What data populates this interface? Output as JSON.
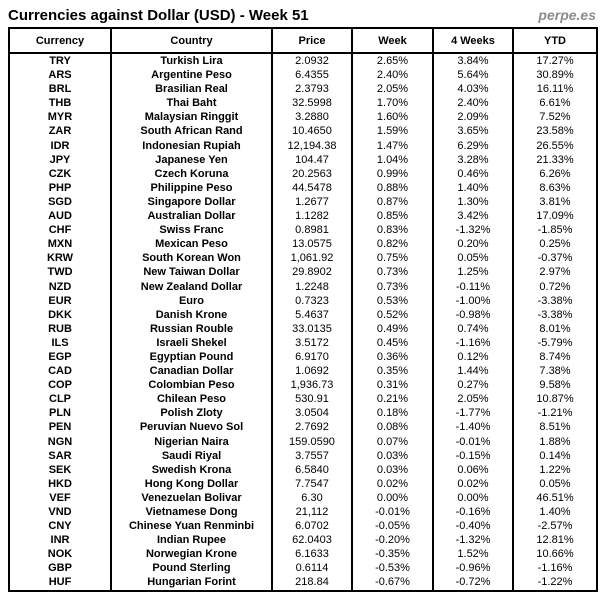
{
  "header": {
    "title": "Currencies against Dollar (USD) - Week 51",
    "watermark": "perpe.es"
  },
  "colors": {
    "positive": "#008000",
    "negative": "#ff0000",
    "border": "#000000",
    "price_text": "#000000",
    "watermark": "#8c8c8c"
  },
  "chart_data": {
    "type": "table",
    "title": "Currencies against Dollar (USD) - Week 51",
    "columns": [
      "Currency",
      "Country",
      "Price",
      "Week",
      "4 Weeks",
      "YTD"
    ],
    "rows": [
      {
        "code": "TRY",
        "country": "Turkish Lira",
        "price": "2.0932",
        "week": "2.65%",
        "weeks4": "3.84%",
        "ytd": "17.27%"
      },
      {
        "code": "ARS",
        "country": "Argentine Peso",
        "price": "6.4355",
        "week": "2.40%",
        "weeks4": "5.64%",
        "ytd": "30.89%"
      },
      {
        "code": "BRL",
        "country": "Brasilian Real",
        "price": "2.3793",
        "week": "2.05%",
        "weeks4": "4.03%",
        "ytd": "16.11%"
      },
      {
        "code": "THB",
        "country": "Thai Baht",
        "price": "32.5998",
        "week": "1.70%",
        "weeks4": "2.40%",
        "ytd": "6.61%"
      },
      {
        "code": "MYR",
        "country": "Malaysian Ringgit",
        "price": "3.2880",
        "week": "1.60%",
        "weeks4": "2.09%",
        "ytd": "7.52%"
      },
      {
        "code": "ZAR",
        "country": "South African Rand",
        "price": "10.4650",
        "week": "1.59%",
        "weeks4": "3.65%",
        "ytd": "23.58%"
      },
      {
        "code": "IDR",
        "country": "Indonesian Rupiah",
        "price": "12,194.38",
        "week": "1.47%",
        "weeks4": "6.29%",
        "ytd": "26.55%"
      },
      {
        "code": "JPY",
        "country": "Japanese Yen",
        "price": "104.47",
        "week": "1.04%",
        "weeks4": "3.28%",
        "ytd": "21.33%"
      },
      {
        "code": "CZK",
        "country": "Czech Koruna",
        "price": "20.2563",
        "week": "0.99%",
        "weeks4": "0.46%",
        "ytd": "6.26%"
      },
      {
        "code": "PHP",
        "country": "Philippine Peso",
        "price": "44.5478",
        "week": "0.88%",
        "weeks4": "1.40%",
        "ytd": "8.63%"
      },
      {
        "code": "SGD",
        "country": "Singapore Dollar",
        "price": "1.2677",
        "week": "0.87%",
        "weeks4": "1.30%",
        "ytd": "3.81%"
      },
      {
        "code": "AUD",
        "country": "Australian Dollar",
        "price": "1.1282",
        "week": "0.85%",
        "weeks4": "3.42%",
        "ytd": "17.09%"
      },
      {
        "code": "CHF",
        "country": "Swiss Franc",
        "price": "0.8981",
        "week": "0.83%",
        "weeks4": "-1.32%",
        "ytd": "-1.85%"
      },
      {
        "code": "MXN",
        "country": "Mexican Peso",
        "price": "13.0575",
        "week": "0.82%",
        "weeks4": "0.20%",
        "ytd": "0.25%"
      },
      {
        "code": "KRW",
        "country": "South Korean Won",
        "price": "1,061.92",
        "week": "0.75%",
        "weeks4": "0.05%",
        "ytd": "-0.37%"
      },
      {
        "code": "TWD",
        "country": "New Taiwan Dollar",
        "price": "29.8902",
        "week": "0.73%",
        "weeks4": "1.25%",
        "ytd": "2.97%"
      },
      {
        "code": "NZD",
        "country": "New Zealand Dollar",
        "price": "1.2248",
        "week": "0.73%",
        "weeks4": "-0.11%",
        "ytd": "0.72%"
      },
      {
        "code": "EUR",
        "country": "Euro",
        "price": "0.7323",
        "week": "0.53%",
        "weeks4": "-1.00%",
        "ytd": "-3.38%"
      },
      {
        "code": "DKK",
        "country": "Danish Krone",
        "price": "5.4637",
        "week": "0.52%",
        "weeks4": "-0.98%",
        "ytd": "-3.38%"
      },
      {
        "code": "RUB",
        "country": "Russian Rouble",
        "price": "33.0135",
        "week": "0.49%",
        "weeks4": "0.74%",
        "ytd": "8.01%"
      },
      {
        "code": "ILS",
        "country": "Israeli Shekel",
        "price": "3.5172",
        "week": "0.45%",
        "weeks4": "-1.16%",
        "ytd": "-5.79%"
      },
      {
        "code": "EGP",
        "country": "Egyptian Pound",
        "price": "6.9170",
        "week": "0.36%",
        "weeks4": "0.12%",
        "ytd": "8.74%"
      },
      {
        "code": "CAD",
        "country": "Canadian Dollar",
        "price": "1.0692",
        "week": "0.35%",
        "weeks4": "1.44%",
        "ytd": "7.38%"
      },
      {
        "code": "COP",
        "country": "Colombian Peso",
        "price": "1,936.73",
        "week": "0.31%",
        "weeks4": "0.27%",
        "ytd": "9.58%"
      },
      {
        "code": "CLP",
        "country": "Chilean Peso",
        "price": "530.91",
        "week": "0.21%",
        "weeks4": "2.05%",
        "ytd": "10.87%"
      },
      {
        "code": "PLN",
        "country": "Polish Zloty",
        "price": "3.0504",
        "week": "0.18%",
        "weeks4": "-1.77%",
        "ytd": "-1.21%"
      },
      {
        "code": "PEN",
        "country": "Peruvian Nuevo Sol",
        "price": "2.7692",
        "week": "0.08%",
        "weeks4": "-1.40%",
        "ytd": "8.51%"
      },
      {
        "code": "NGN",
        "country": "Nigerian Naira",
        "price": "159.0590",
        "week": "0.07%",
        "weeks4": "-0.01%",
        "ytd": "1.88%"
      },
      {
        "code": "SAR",
        "country": "Saudi Riyal",
        "price": "3.7557",
        "week": "0.03%",
        "weeks4": "-0.15%",
        "ytd": "0.14%"
      },
      {
        "code": "SEK",
        "country": "Swedish Krona",
        "price": "6.5840",
        "week": "0.03%",
        "weeks4": "0.06%",
        "ytd": "1.22%"
      },
      {
        "code": "HKD",
        "country": "Hong Kong Dollar",
        "price": "7.7547",
        "week": "0.02%",
        "weeks4": "0.02%",
        "ytd": "0.05%"
      },
      {
        "code": "VEF",
        "country": "Venezuelan Bolivar",
        "price": "6.30",
        "week": "0.00%",
        "weeks4": "0.00%",
        "ytd": "46.51%"
      },
      {
        "code": "VND",
        "country": "Vietnamese Dong",
        "price": "21,112",
        "week": "-0.01%",
        "weeks4": "-0.16%",
        "ytd": "1.40%"
      },
      {
        "code": "CNY",
        "country": "Chinese Yuan Renminbi",
        "price": "6.0702",
        "week": "-0.05%",
        "weeks4": "-0.40%",
        "ytd": "-2.57%"
      },
      {
        "code": "INR",
        "country": "Indian Rupee",
        "price": "62.0403",
        "week": "-0.20%",
        "weeks4": "-1.32%",
        "ytd": "12.81%"
      },
      {
        "code": "NOK",
        "country": "Norwegian Krone",
        "price": "6.1633",
        "week": "-0.35%",
        "weeks4": "1.52%",
        "ytd": "10.66%"
      },
      {
        "code": "GBP",
        "country": "Pound Sterling",
        "price": "0.6114",
        "week": "-0.53%",
        "weeks4": "-0.96%",
        "ytd": "-1.16%"
      },
      {
        "code": "HUF",
        "country": "Hungarian Forint",
        "price": "218.84",
        "week": "-0.67%",
        "weeks4": "-0.72%",
        "ytd": "-1.22%"
      }
    ]
  }
}
